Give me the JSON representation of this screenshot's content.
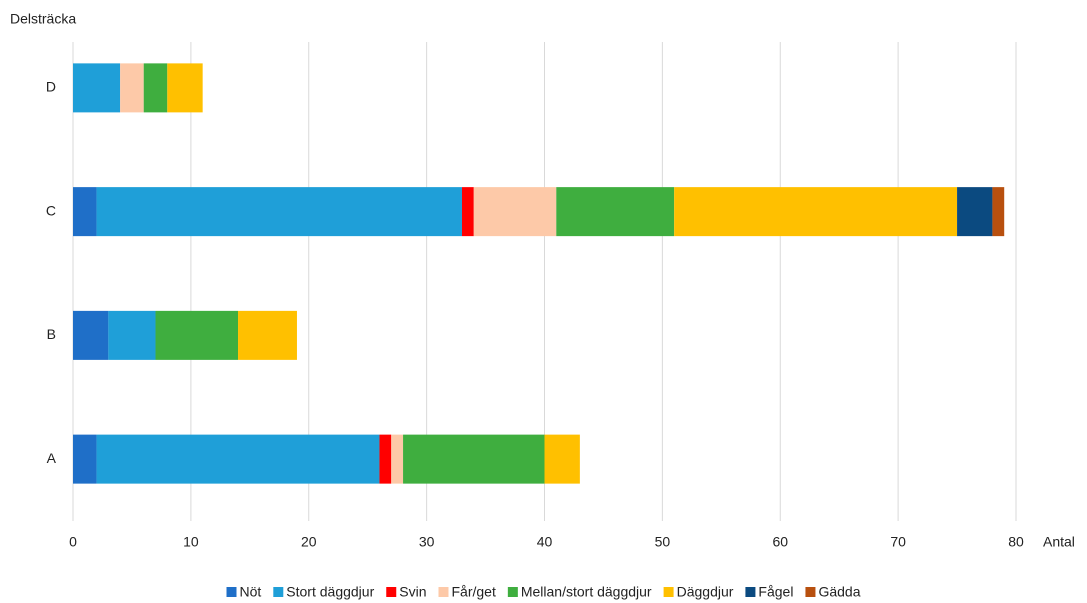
{
  "chart_data": {
    "type": "stacked_bar_horizontal",
    "ylabel": "Delsträcka",
    "xlabel": "Antal",
    "categories": [
      "A",
      "B",
      "C",
      "D"
    ],
    "series": [
      {
        "name": "Nöt",
        "color": "#1f6fc8",
        "values": [
          2,
          3,
          2,
          0
        ]
      },
      {
        "name": "Stort däggdjur",
        "color": "#1f9fd8",
        "values": [
          24,
          4,
          31,
          4
        ]
      },
      {
        "name": "Svin",
        "color": "#ff0000",
        "values": [
          1,
          0,
          1,
          0
        ]
      },
      {
        "name": "Får/get",
        "color": "#fdc9a8",
        "values": [
          1,
          0,
          7,
          2
        ]
      },
      {
        "name": "Mellan/stort däggdjur",
        "color": "#3fae3f",
        "values": [
          12,
          7,
          10,
          2
        ]
      },
      {
        "name": "Däggdjur",
        "color": "#ffc000",
        "values": [
          3,
          5,
          24,
          3
        ]
      },
      {
        "name": "Fågel",
        "color": "#0b4a80",
        "values": [
          0,
          0,
          3,
          0
        ]
      },
      {
        "name": "Gädda",
        "color": "#b8500f",
        "values": [
          0,
          0,
          1,
          0
        ]
      }
    ],
    "xlim": [
      0,
      80
    ],
    "xticks": [
      0,
      10,
      20,
      30,
      40,
      50,
      60,
      70,
      80
    ],
    "grid": true
  }
}
